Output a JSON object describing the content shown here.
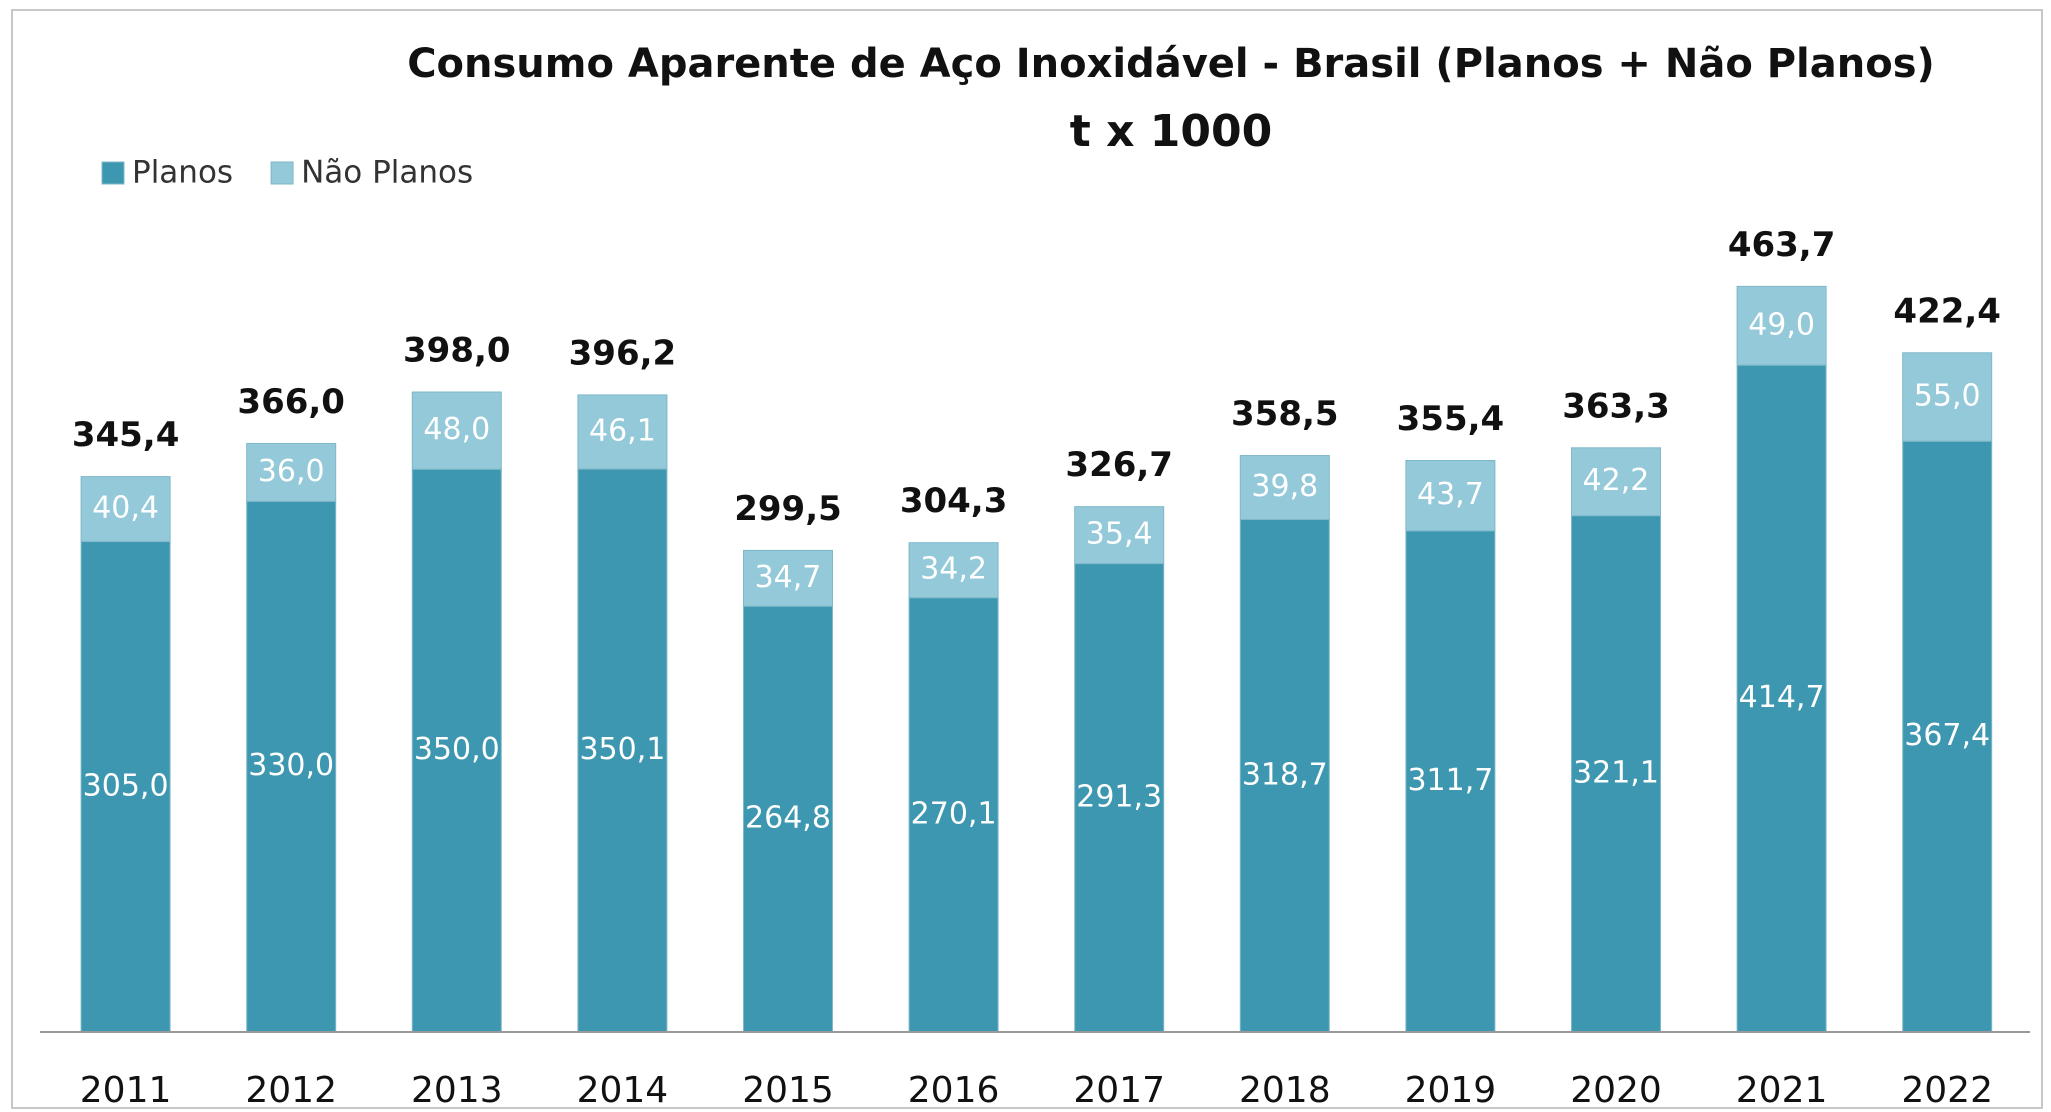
{
  "chart_data": {
    "type": "stacked_bar",
    "title": "Consumo Aparente de Aço Inoxidável - Brasil  (Planos + Não Planos)",
    "subtitle": "t x 1000",
    "categories": [
      "2011",
      "2012",
      "2013",
      "2014",
      "2015",
      "2016",
      "2017",
      "2018",
      "2019",
      "2020",
      "2021",
      "2022"
    ],
    "series": [
      {
        "name": "Planos",
        "color": "#3e97b0",
        "values": [
          305.0,
          330.0,
          350.0,
          350.1,
          264.8,
          270.1,
          291.3,
          318.7,
          311.7,
          321.1,
          414.7,
          367.4
        ],
        "value_labels": [
          "305,0",
          "330,0",
          "350,0",
          "350,1",
          "264,8",
          "270,1",
          "291,3",
          "318,7",
          "311,7",
          "321,1",
          "414,7",
          "367,4"
        ]
      },
      {
        "name": "Não Planos",
        "color": "#93c9d9",
        "values": [
          40.4,
          36.0,
          48.0,
          46.1,
          34.7,
          34.2,
          35.4,
          39.8,
          43.7,
          42.2,
          49.0,
          55.0
        ],
        "value_labels": [
          "40,4",
          "36,0",
          "48,0",
          "46,1",
          "34,7",
          "34,2",
          "35,4",
          "39,8",
          "43,7",
          "42,2",
          "49,0",
          "55,0"
        ]
      }
    ],
    "totals": {
      "values": [
        345.4,
        366.0,
        398.0,
        396.2,
        299.5,
        304.3,
        326.7,
        358.5,
        355.4,
        363.3,
        463.7,
        422.4
      ],
      "value_labels": [
        "345,4",
        "366,0",
        "398,0",
        "396,2",
        "299,5",
        "304,3",
        "326,7",
        "358,5",
        "355,4",
        "363,3",
        "463,7",
        "422,4"
      ]
    },
    "ylim": [
      0,
      500
    ],
    "legend": "top-left"
  }
}
